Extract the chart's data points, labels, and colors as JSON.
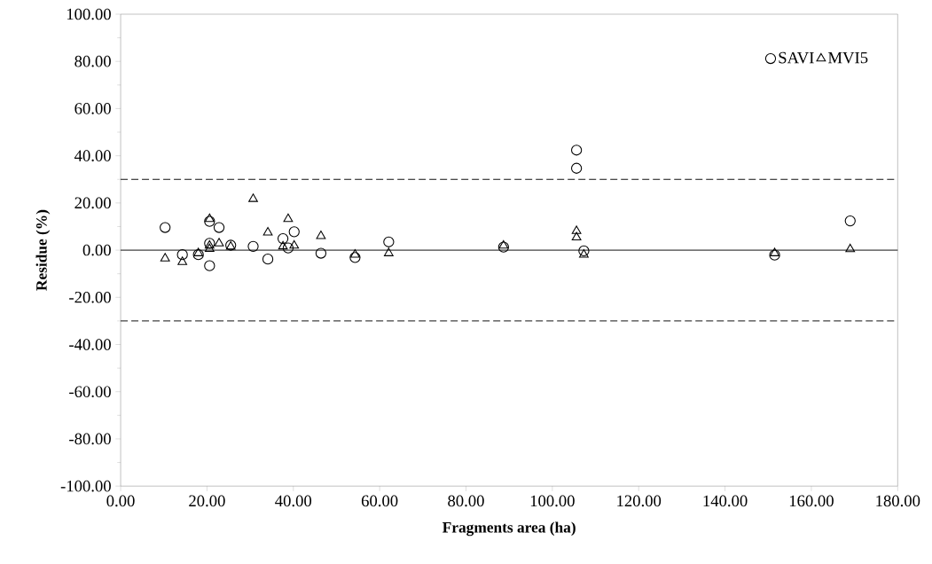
{
  "chart_data": {
    "type": "scatter",
    "xlabel": "Fragments area (ha)",
    "ylabel": "Residue (%)",
    "xlim": [
      0,
      180
    ],
    "ylim": [
      -100,
      100
    ],
    "xticks": [
      {
        "value": 0,
        "label": "0.00"
      },
      {
        "value": 20,
        "label": "20.00"
      },
      {
        "value": 40,
        "label": "40.00"
      },
      {
        "value": 60,
        "label": "60.00"
      },
      {
        "value": 80,
        "label": "80.00"
      },
      {
        "value": 100,
        "label": "100.00"
      },
      {
        "value": 120,
        "label": "120.00"
      },
      {
        "value": 140,
        "label": "140.00"
      },
      {
        "value": 160,
        "label": "160.00"
      },
      {
        "value": 180,
        "label": "180.00"
      }
    ],
    "yticks": [
      {
        "value": -100,
        "label": "-100.00"
      },
      {
        "value": -80,
        "label": "-80.00"
      },
      {
        "value": -60,
        "label": "-60.00"
      },
      {
        "value": -40,
        "label": "-40.00"
      },
      {
        "value": -20,
        "label": "-20.00"
      },
      {
        "value": 0,
        "label": "0.00"
      },
      {
        "value": 20,
        "label": "20.00"
      },
      {
        "value": 40,
        "label": "40.00"
      },
      {
        "value": 60,
        "label": "60.00"
      },
      {
        "value": 80,
        "label": "80.00"
      },
      {
        "value": 100,
        "label": "100.00"
      }
    ],
    "legend": "top right",
    "ref_lines": [
      {
        "axis": "y",
        "value": 0,
        "line_style": "solid",
        "color": "#000000"
      },
      {
        "axis": "y",
        "value": 30,
        "line_style": "dashed",
        "color": "#000000"
      },
      {
        "axis": "y",
        "value": -30,
        "line_style": "dashed",
        "color": "#000000"
      }
    ],
    "series": [
      {
        "name": "SAVI",
        "color": "#000000",
        "marker": "circle",
        "x": [
          10.3,
          14.3,
          18.0,
          20.6,
          20.6,
          20.6,
          22.8,
          25.5,
          30.7,
          34.1,
          37.6,
          38.8,
          40.2,
          46.4,
          54.3,
          62.1,
          88.7,
          105.6,
          105.6,
          107.3,
          151.5,
          169.0
        ],
        "values": [
          9.6,
          -1.9,
          -1.9,
          12.2,
          2.9,
          -6.6,
          9.6,
          2.1,
          1.6,
          -3.8,
          4.9,
          0.9,
          7.8,
          -1.3,
          -3.1,
          3.5,
          1.3,
          42.4,
          34.7,
          -0.3,
          -2.1,
          12.4
        ]
      },
      {
        "name": "MVI5",
        "color": "#000000",
        "marker": "triangle",
        "x": [
          10.3,
          14.3,
          18.0,
          20.6,
          20.6,
          20.6,
          22.8,
          25.5,
          30.7,
          34.1,
          37.6,
          38.8,
          40.2,
          46.4,
          54.3,
          62.1,
          88.7,
          105.6,
          105.6,
          107.3,
          151.5,
          169.0
        ],
        "values": [
          -3.5,
          -5.0,
          -1.3,
          13.2,
          1.9,
          0.5,
          2.9,
          1.5,
          21.7,
          7.5,
          1.6,
          13.2,
          1.9,
          6.0,
          -1.9,
          -1.3,
          1.9,
          8.1,
          5.4,
          -1.9,
          -1.3,
          0.4
        ]
      }
    ]
  }
}
